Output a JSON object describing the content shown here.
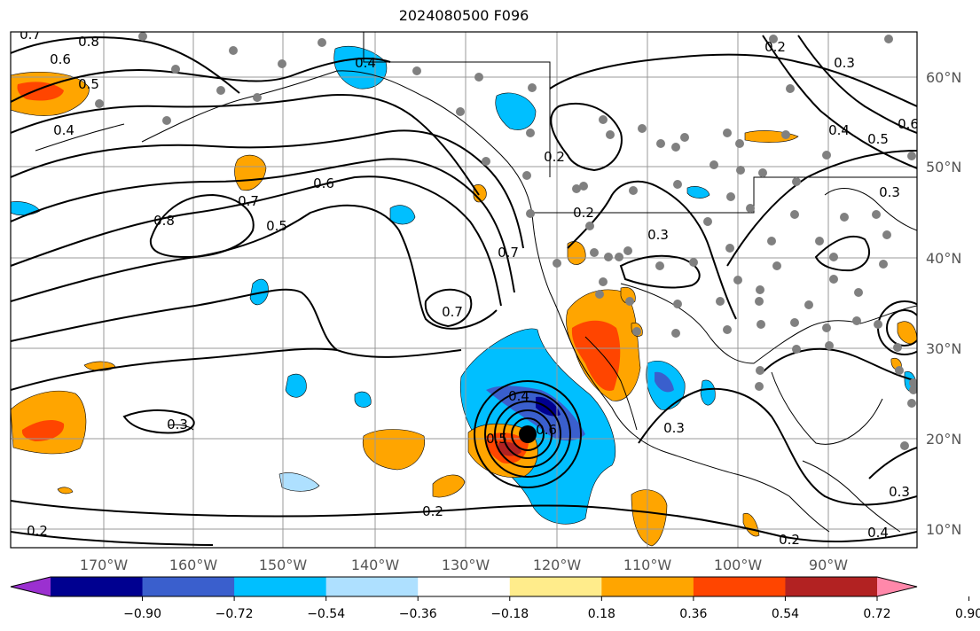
{
  "title": "2024080500 F096",
  "map": {
    "grid_color": "#999999",
    "lon_labels": [
      "170°W",
      "160°W",
      "150°W",
      "140°W",
      "130°W",
      "120°W",
      "110°W",
      "100°W",
      "90°W"
    ],
    "lat_labels": [
      "60°N",
      "50°N",
      "40°N",
      "30°N",
      "20°N",
      "10°N"
    ],
    "contour_labels": [
      "0.7",
      "0.8",
      "0.6",
      "0.5",
      "0.4",
      "0.2",
      "0.8",
      "0.7",
      "0.5",
      "0.6",
      "0.7",
      "0.7",
      "0.3",
      "0.2",
      "0.4",
      "0.6",
      "0.5",
      "0.2",
      "0.2",
      "0.3",
      "0.3",
      "0.4",
      "0.5",
      "0.6",
      "0.3",
      "0.3",
      "0.4",
      "0.2",
      "0.2",
      "0.3",
      "0.4"
    ],
    "storm_center": "tropical-cyclone-marker"
  },
  "colorbar": {
    "colors": [
      "#9b30d0",
      "#000090",
      "#3a5fcd",
      "#00bfff",
      "#aee0ff",
      "#ffffff",
      "#ffec8b",
      "#ffa500",
      "#ff4500",
      "#b22222",
      "#ff88aa"
    ],
    "tick_labels": [
      "−0.90",
      "−0.72",
      "−0.54",
      "−0.36",
      "−0.18",
      "0.18",
      "0.36",
      "0.54",
      "0.72",
      "0.90"
    ]
  }
}
